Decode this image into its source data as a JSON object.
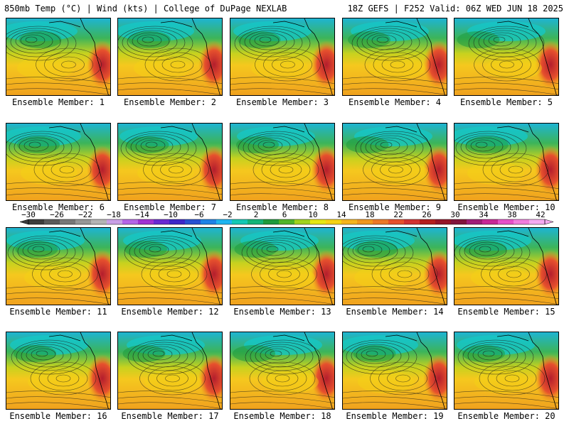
{
  "header": {
    "left": "850mb Temp (°C) | Wind (kts) | College of DuPage NEXLAB",
    "right": "18Z GEFS | F252 Valid: 06Z WED JUN 18 2025"
  },
  "members": [
    {
      "label": "Ensemble Member: 1"
    },
    {
      "label": "Ensemble Member: 2"
    },
    {
      "label": "Ensemble Member: 3"
    },
    {
      "label": "Ensemble Member: 4"
    },
    {
      "label": "Ensemble Member: 5"
    },
    {
      "label": "Ensemble Member: 6"
    },
    {
      "label": "Ensemble Member: 7"
    },
    {
      "label": "Ensemble Member: 8"
    },
    {
      "label": "Ensemble Member: 9"
    },
    {
      "label": "Ensemble Member: 10"
    },
    {
      "label": "Ensemble Member: 11"
    },
    {
      "label": "Ensemble Member: 12"
    },
    {
      "label": "Ensemble Member: 13"
    },
    {
      "label": "Ensemble Member: 14"
    },
    {
      "label": "Ensemble Member: 15"
    },
    {
      "label": "Ensemble Member: 16"
    },
    {
      "label": "Ensemble Member: 17"
    },
    {
      "label": "Ensemble Member: 18"
    },
    {
      "label": "Ensemble Member: 19"
    },
    {
      "label": "Ensemble Member: 20"
    }
  ],
  "colorbar": {
    "labels": [
      "−30",
      "−26",
      "−22",
      "−18",
      "−14",
      "−10",
      "−6",
      "−2",
      "2",
      "6",
      "10",
      "14",
      "18",
      "22",
      "26",
      "30",
      "34",
      "38",
      "42"
    ],
    "colors": [
      "#3c3c3c",
      "#5a5a5a",
      "#787878",
      "#969696",
      "#b4b4b4",
      "#c8a0e6",
      "#b464e6",
      "#a032d2",
      "#6a2ad2",
      "#3c28c8",
      "#2850d2",
      "#1e82e6",
      "#1eb4f0",
      "#14c8b4",
      "#14b478",
      "#1e9a3c",
      "#50b428",
      "#a0d21e",
      "#e6e614",
      "#f5d214",
      "#f5b41e",
      "#f0961e",
      "#eb7828",
      "#e6502d",
      "#d23232",
      "#b41e1e",
      "#961428",
      "#82143c",
      "#a01e78",
      "#c82896",
      "#e650c8",
      "#f07ddc",
      "#f5aaf0"
    ]
  }
}
